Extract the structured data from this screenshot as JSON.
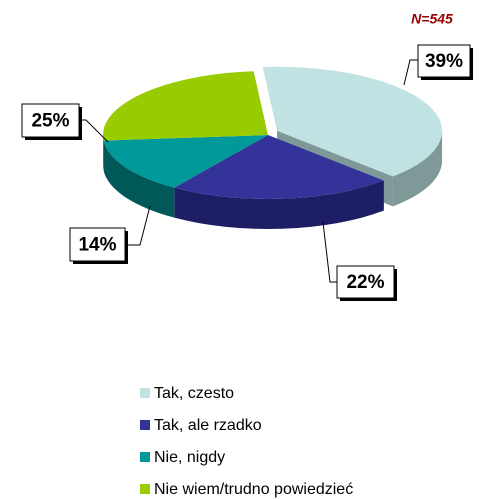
{
  "chart_data": {
    "type": "pie3d",
    "annotation": "N=545",
    "categories": [
      "Tak, czesto",
      "Tak, ale rzadko",
      "Nie, nigdy",
      "Nie wiem/trudno powiedzieć"
    ],
    "values": [
      39,
      22,
      14,
      25
    ],
    "value_labels": [
      "39%",
      "22%",
      "14%",
      "25%"
    ],
    "colors": [
      "#c0e2e2",
      "#333399",
      "#009999",
      "#99cc00"
    ],
    "side_colors": [
      "#7f9898",
      "#1e1e66",
      "#005858",
      "#5e7a00"
    ]
  }
}
